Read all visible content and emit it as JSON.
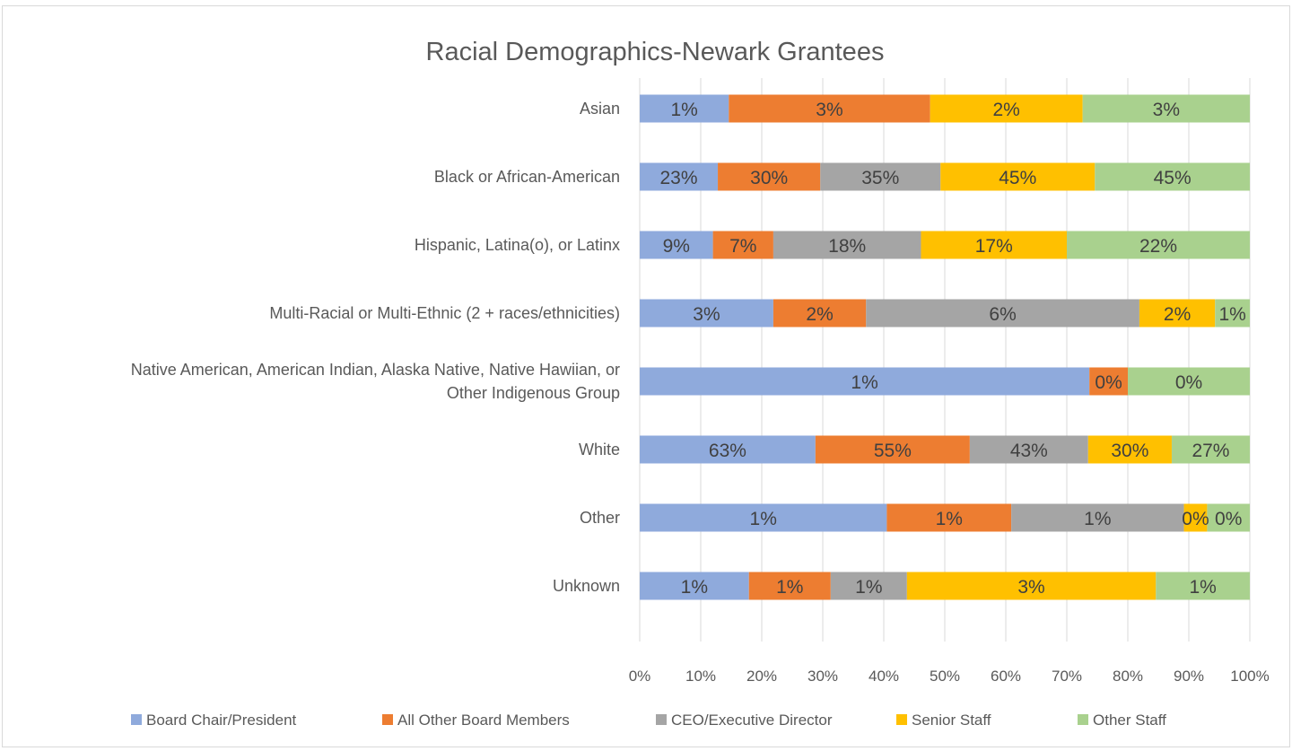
{
  "chart_data": {
    "type": "bar",
    "orientation": "horizontal",
    "stacked": "percent",
    "title": "Racial Demographics-Newark Grantees",
    "categories": [
      "Asian",
      "Black or African-American",
      "Hispanic, Latina(o), or Latinx",
      "Multi-Racial or Multi-Ethnic (2 + races/ethnicities)",
      "Native American, American Indian, Alaska Native, Native Hawiian, or Other Indigenous Group",
      "White",
      "Other",
      "Unknown"
    ],
    "category_lines": [
      [
        "Asian"
      ],
      [
        "Black or African-American"
      ],
      [
        "Hispanic, Latina(o), or Latinx"
      ],
      [
        "Multi-Racial or Multi-Ethnic (2 + races/ethnicities)"
      ],
      [
        "Native American, American Indian, Alaska Native, Native Hawiian, or",
        "Other Indigenous Group"
      ],
      [
        "White"
      ],
      [
        "Other"
      ],
      [
        "Unknown"
      ]
    ],
    "series": [
      {
        "name": "Board Chair/President",
        "color": "#8faadc",
        "shares": [
          14.6,
          12.8,
          12.0,
          21.9,
          73.7,
          28.8,
          40.5,
          17.9
        ],
        "labels": [
          "1%",
          "23%",
          "9%",
          "3%",
          "1%",
          "63%",
          "1%",
          "1%"
        ]
      },
      {
        "name": "All Other Board Members",
        "color": "#ed7d31",
        "shares": [
          33.0,
          16.8,
          9.9,
          15.2,
          6.3,
          25.3,
          20.4,
          13.4
        ],
        "labels": [
          "3%",
          "30%",
          "7%",
          "2%",
          "0%",
          "55%",
          "1%",
          "1%"
        ]
      },
      {
        "name": "CEO/Executive Director",
        "color": "#a5a5a5",
        "shares": [
          0,
          19.7,
          24.2,
          44.8,
          0,
          19.4,
          28.3,
          12.5
        ],
        "labels": [
          "",
          "35%",
          "18%",
          "6%",
          "",
          "43%",
          "1%",
          "1%"
        ]
      },
      {
        "name": "Senior Staff",
        "color": "#ffc000",
        "shares": [
          25.0,
          25.3,
          23.9,
          12.4,
          0,
          13.7,
          3.8,
          40.8
        ],
        "labels": [
          "2%",
          "45%",
          "17%",
          "2%",
          "",
          "30%",
          "0%",
          "3%"
        ]
      },
      {
        "name": "Other Staff",
        "color": "#a9d18e",
        "shares": [
          27.4,
          25.4,
          30.0,
          5.7,
          20.0,
          12.8,
          7.0,
          15.4
        ],
        "labels": [
          "3%",
          "45%",
          "22%",
          "1%",
          "0%",
          "27%",
          "0%",
          "1%"
        ]
      }
    ],
    "xlim": [
      0,
      100
    ],
    "x_ticks": [
      "0%",
      "10%",
      "20%",
      "30%",
      "40%",
      "50%",
      "60%",
      "70%",
      "80%",
      "90%",
      "100%"
    ],
    "grid": true,
    "legend_position": "bottom"
  }
}
